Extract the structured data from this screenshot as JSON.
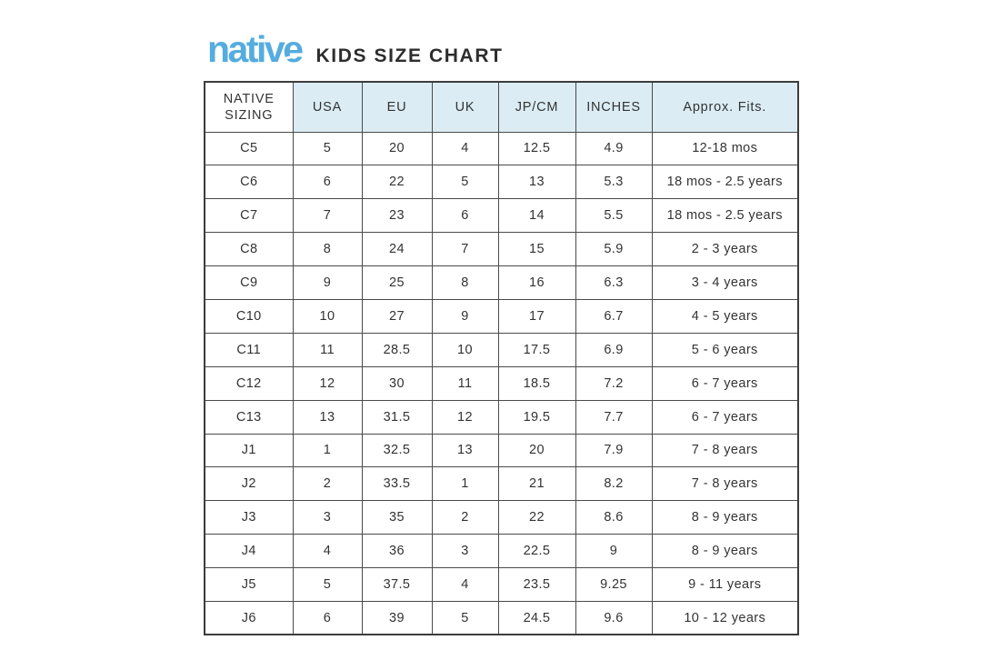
{
  "header": {
    "logo_text": "native",
    "title": "KIDS SIZE CHART"
  },
  "table": {
    "columns": [
      "NATIVE SIZING",
      "USA",
      "EU",
      "UK",
      "JP/CM",
      "INCHES",
      "Approx. Fits."
    ],
    "rows": [
      [
        "C5",
        "5",
        "20",
        "4",
        "12.5",
        "4.9",
        "12-18 mos"
      ],
      [
        "C6",
        "6",
        "22",
        "5",
        "13",
        "5.3",
        "18 mos - 2.5 years"
      ],
      [
        "C7",
        "7",
        "23",
        "6",
        "14",
        "5.5",
        "18 mos - 2.5 years"
      ],
      [
        "C8",
        "8",
        "24",
        "7",
        "15",
        "5.9",
        "2 - 3 years"
      ],
      [
        "C9",
        "9",
        "25",
        "8",
        "16",
        "6.3",
        "3 - 4 years"
      ],
      [
        "C10",
        "10",
        "27",
        "9",
        "17",
        "6.7",
        "4 - 5 years"
      ],
      [
        "C11",
        "11",
        "28.5",
        "10",
        "17.5",
        "6.9",
        "5 - 6 years"
      ],
      [
        "C12",
        "12",
        "30",
        "11",
        "18.5",
        "7.2",
        "6 - 7 years"
      ],
      [
        "C13",
        "13",
        "31.5",
        "12",
        "19.5",
        "7.7",
        "6 - 7 years"
      ],
      [
        "J1",
        "1",
        "32.5",
        "13",
        "20",
        "7.9",
        "7 - 8 years"
      ],
      [
        "J2",
        "2",
        "33.5",
        "1",
        "21",
        "8.2",
        "7 - 8 years"
      ],
      [
        "J3",
        "3",
        "35",
        "2",
        "22",
        "8.6",
        "8 - 9 years"
      ],
      [
        "J4",
        "4",
        "36",
        "3",
        "22.5",
        "9",
        "8 - 9 years"
      ],
      [
        "J5",
        "5",
        "37.5",
        "4",
        "23.5",
        "9.25",
        "9 - 11 years"
      ],
      [
        "J6",
        "6",
        "39",
        "5",
        "24.5",
        "9.6",
        "10 - 12 years"
      ]
    ]
  },
  "colors": {
    "logo_blue": "#54acdf",
    "header_cell_bg": "#dbecf4",
    "text_dark": "#333333",
    "border": "#4a4a4a"
  }
}
